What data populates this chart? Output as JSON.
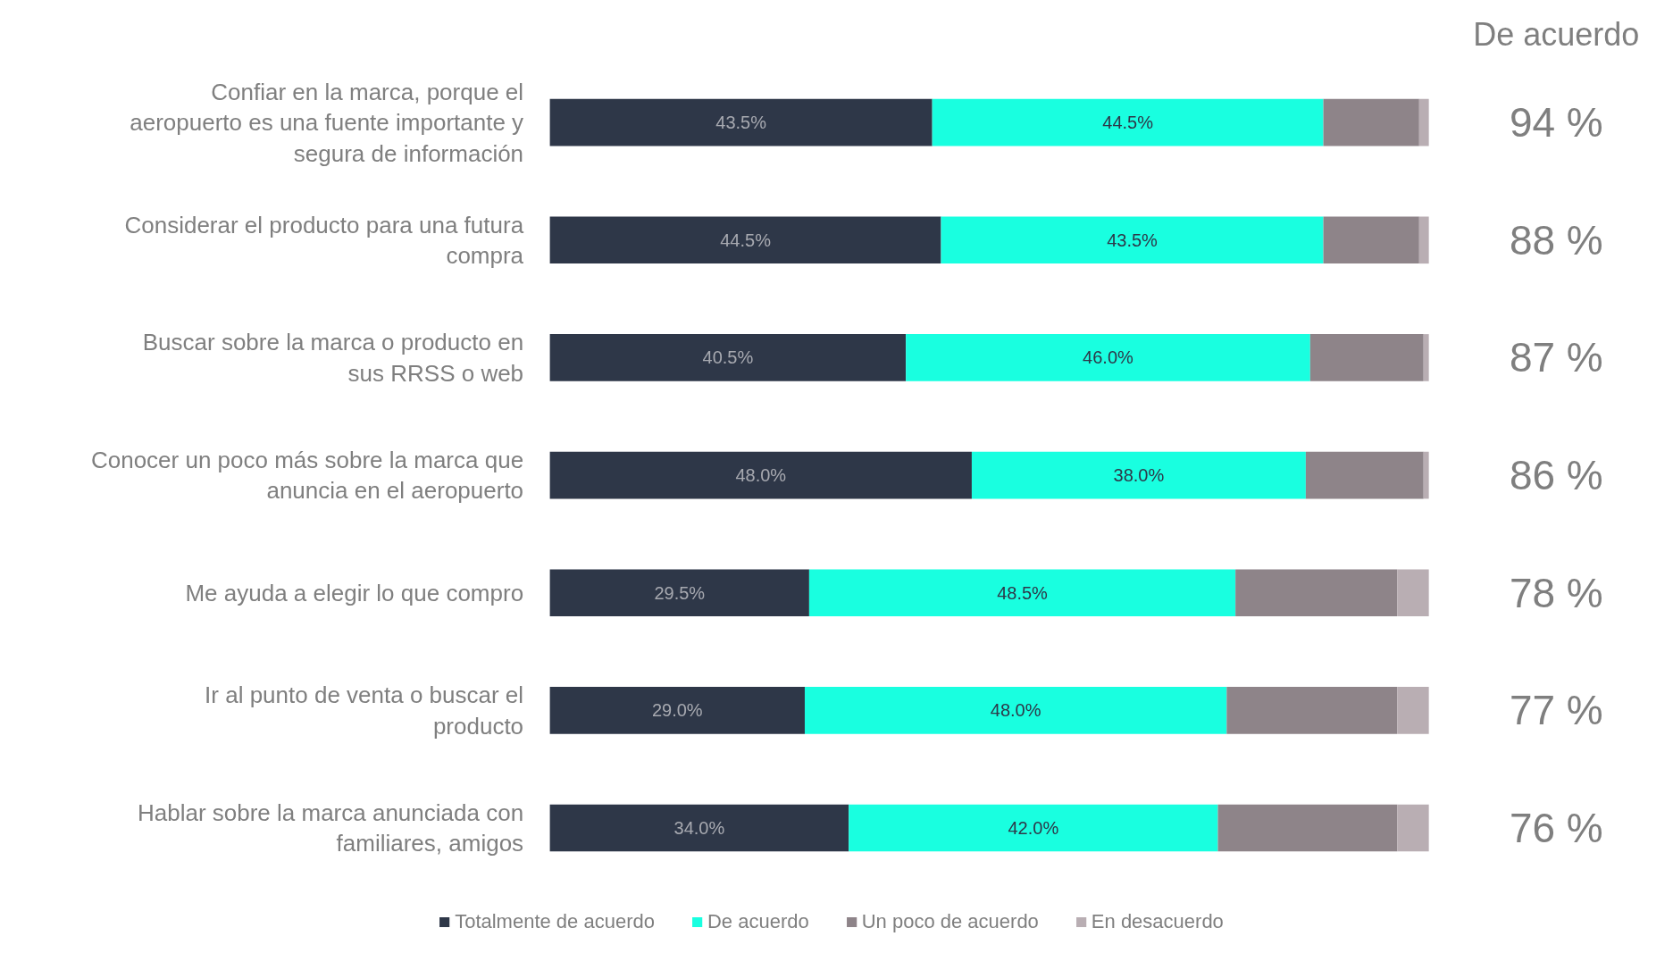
{
  "chart_data": {
    "type": "bar",
    "orientation": "horizontal",
    "stacked": true,
    "legend": "bottom",
    "xlim": [
      0,
      100
    ],
    "categories": [
      "Confiar en la marca, porque el aeropuerto es una fuente importante y segura de información",
      "Considerar el producto para una futura compra",
      "Buscar sobre la marca o producto en sus RRSS o web",
      "Conocer un poco más sobre la marca que anuncia en el aeropuerto",
      "Me ayuda a elegir lo que compro",
      "Ir al punto de venta o buscar el producto",
      "Hablar sobre la marca anunciada con familiares, amigos"
    ],
    "series": [
      {
        "name": "Totalmente de acuerdo",
        "color": "#2e3748",
        "values": [
          43.5,
          44.5,
          40.5,
          48.0,
          29.5,
          29.0,
          34.0
        ],
        "value_labels": [
          "43.5%",
          "44.5%",
          "40.5%",
          "48.0%",
          "29.5%",
          "29.0%",
          "34.0%"
        ]
      },
      {
        "name": "De acuerdo",
        "color": "#19ffe0",
        "values": [
          44.5,
          43.5,
          46.0,
          38.0,
          48.5,
          48.0,
          42.0
        ],
        "value_labels": [
          "44.5%",
          "43.5%",
          "46.0%",
          "38.0%",
          "48.5%",
          "48.0%",
          "42.0%"
        ]
      },
      {
        "name": "Un poco de acuerdo",
        "color": "#8e8489",
        "values": [
          10.9,
          10.9,
          12.9,
          13.4,
          18.4,
          19.4,
          20.4
        ]
      },
      {
        "name": "En desacuerdo",
        "color": "#b9aeb3",
        "values": [
          1.1,
          1.1,
          0.6,
          0.6,
          3.6,
          3.6,
          3.6
        ]
      }
    ],
    "annotations": [
      "De acuerdo",
      "94 %",
      "88 %",
      "87 %",
      "86 %",
      "78 %",
      "77 %",
      "76 %"
    ]
  }
}
